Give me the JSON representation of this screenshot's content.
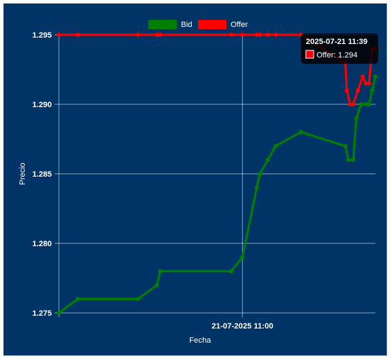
{
  "chart_data": {
    "type": "line",
    "xlabel": "Fecha",
    "ylabel": "Precio",
    "x_tick_label": "21-07-2025 11:00",
    "x_tick_pos": 0.58,
    "y_ticks": [
      "1.275",
      "1.280",
      "1.285",
      "1.290",
      "1.295"
    ],
    "y_tick_values": [
      1.275,
      1.28,
      1.285,
      1.29,
      1.295
    ],
    "ylim": [
      1.275,
      1.295
    ],
    "grid": true,
    "legend_position": "top-center",
    "series": [
      {
        "name": "Bid",
        "color": "#008000",
        "points": [
          [
            0.0,
            1.275
          ],
          [
            0.06,
            1.276
          ],
          [
            0.25,
            1.276
          ],
          [
            0.31,
            1.277
          ],
          [
            0.32,
            1.278
          ],
          [
            0.545,
            1.278
          ],
          [
            0.58,
            1.279
          ],
          [
            0.625,
            1.284
          ],
          [
            0.635,
            1.285
          ],
          [
            0.66,
            1.286
          ],
          [
            0.685,
            1.287
          ],
          [
            0.765,
            1.288
          ],
          [
            0.905,
            1.287
          ],
          [
            0.915,
            1.286
          ],
          [
            0.93,
            1.286
          ],
          [
            0.94,
            1.289
          ],
          [
            0.955,
            1.29
          ],
          [
            0.97,
            1.29
          ],
          [
            0.98,
            1.29
          ],
          [
            0.99,
            1.291
          ],
          [
            1.0,
            1.292
          ]
        ]
      },
      {
        "name": "Offer",
        "color": "#ff0000",
        "points": [
          [
            0.0,
            1.295
          ],
          [
            0.06,
            1.295
          ],
          [
            0.25,
            1.295
          ],
          [
            0.31,
            1.295
          ],
          [
            0.32,
            1.295
          ],
          [
            0.545,
            1.295
          ],
          [
            0.58,
            1.295
          ],
          [
            0.625,
            1.295
          ],
          [
            0.635,
            1.295
          ],
          [
            0.66,
            1.295
          ],
          [
            0.685,
            1.295
          ],
          [
            0.765,
            1.295
          ],
          [
            0.905,
            1.293
          ],
          [
            0.91,
            1.291
          ],
          [
            0.92,
            1.29
          ],
          [
            0.93,
            1.29
          ],
          [
            0.945,
            1.291
          ],
          [
            0.96,
            1.292
          ],
          [
            0.97,
            1.2915
          ],
          [
            0.98,
            1.2915
          ],
          [
            0.99,
            1.294
          ],
          [
            1.0,
            1.294
          ]
        ]
      }
    ],
    "tooltip": {
      "title": "2025-07-21 11:39",
      "label": "Offer: 1.294"
    }
  }
}
